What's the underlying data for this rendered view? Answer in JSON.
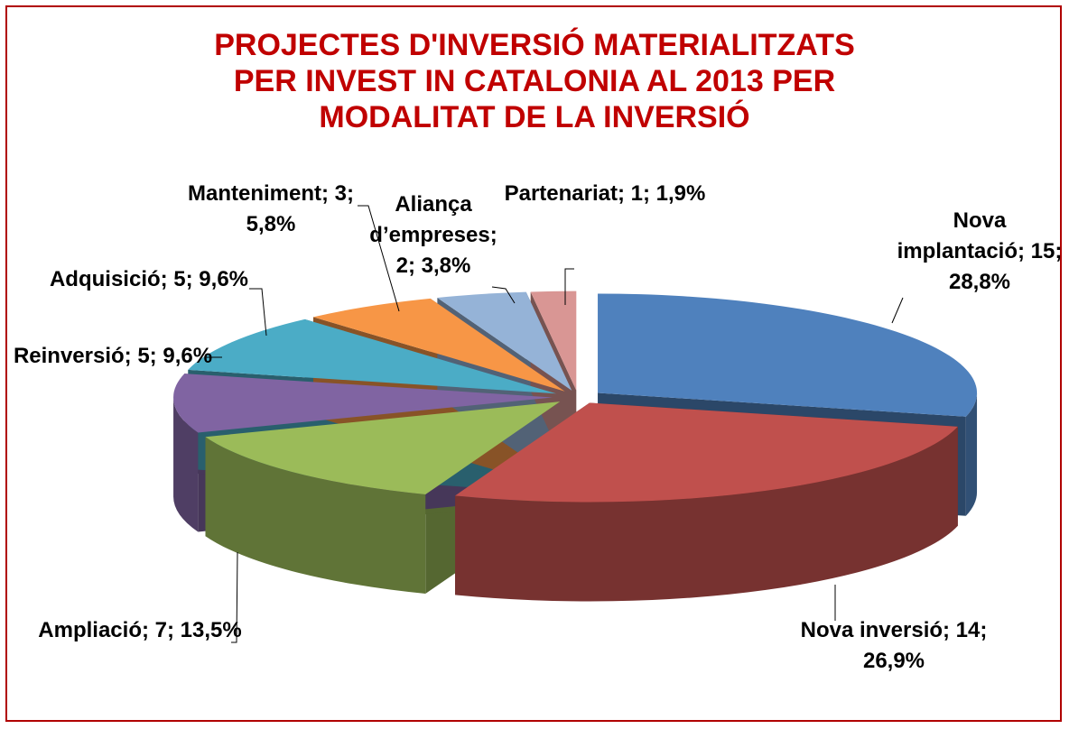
{
  "chart_data": {
    "type": "pie",
    "title": "PROJECTES D'INVERSIÓ MATERIALITZATS PER INVEST IN CATALONIA AL 2013 PER MODALITAT DE LA INVERSIÓ",
    "values": [
      15,
      14,
      7,
      5,
      5,
      3,
      2,
      1
    ],
    "value_labels": [
      "Nova implantació; 15; 28,8%",
      "Nova inversió; 14; 26,9%",
      "Ampliació; 7; 13,5%",
      "Reinversió; 5; 9,6%",
      "Adquisició; 5; 9,6%",
      "Manteniment; 3; 5,8%",
      "Aliança d’empreses; 2; 3,8%",
      "Partenariat; 1; 1,9%"
    ],
    "colors": [
      "#4f81bd",
      "#c0504d",
      "#9bbb59",
      "#8064a2",
      "#4bacc6",
      "#f79646",
      "#95b3d7",
      "#d99694"
    ]
  }
}
